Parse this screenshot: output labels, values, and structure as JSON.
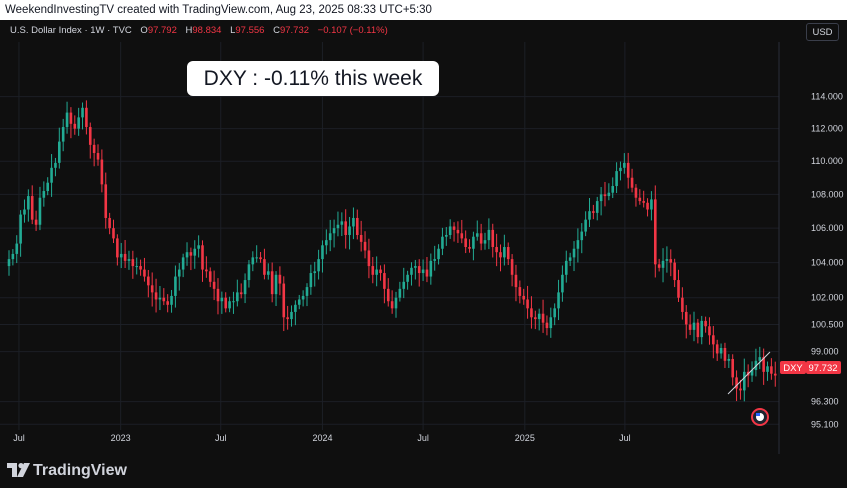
{
  "header": {
    "attribution": "WeekendInvestingTV created with TradingView.com, Aug 23, 2025 08:33 UTC+5:30"
  },
  "legend": {
    "symbol": "U.S. Dollar Index · 1W · TVC",
    "open_label": "O",
    "open": "97.792",
    "high_label": "H",
    "high": "98.834",
    "low_label": "L",
    "low": "97.556",
    "close_label": "C",
    "close": "97.732",
    "change": "−0.107 (−0.11%)"
  },
  "currency_button": "USD",
  "callout": "DXY : -0.11% this week",
  "price_tag": {
    "ticker": "DXY",
    "value": "97.732"
  },
  "footer": {
    "brand": "TradingView"
  },
  "colors": {
    "up": "#22ab94",
    "down": "#f23645",
    "background": "#0f0f0f"
  },
  "chart_data": {
    "type": "candlestick",
    "title": "",
    "y_scale": "log",
    "ylim": [
      94.8,
      117.5
    ],
    "y_ticks": [
      "114.000",
      "112.000",
      "110.000",
      "108.000",
      "106.000",
      "104.000",
      "102.000",
      "100.500",
      "99.000",
      "96.300",
      "95.100"
    ],
    "x_ticks": [
      "Jul",
      "2023",
      "Jul",
      "2024",
      "Jul",
      "2025",
      "Jul"
    ],
    "x_start": "2022-06-13",
    "weekly_closes": [
      104.2,
      104.5,
      105.1,
      106.8,
      107.1,
      107.9,
      106.5,
      106.2,
      107.8,
      108.2,
      108.7,
      109.6,
      109.9,
      111.2,
      112.1,
      113.0,
      112.3,
      112.0,
      112.7,
      113.3,
      112.1,
      111.0,
      110.5,
      110.1,
      108.6,
      106.6,
      106.0,
      105.4,
      104.3,
      104.5,
      104.1,
      104.2,
      103.8,
      103.8,
      103.6,
      103.2,
      102.7,
      102.3,
      101.9,
      102.0,
      101.8,
      101.6,
      102.1,
      103.2,
      103.6,
      104.3,
      104.6,
      104.4,
      104.8,
      105.0,
      103.6,
      103.5,
      102.9,
      102.5,
      101.8,
      102.0,
      101.4,
      101.8,
      101.8,
      102.3,
      102.2,
      103.0,
      103.9,
      104.3,
      104.3,
      104.2,
      103.3,
      103.5,
      102.2,
      103.3,
      102.8,
      100.9,
      100.8,
      101.2,
      101.6,
      101.9,
      102.1,
      102.6,
      103.4,
      103.5,
      104.2,
      105.0,
      105.3,
      105.7,
      106.0,
      106.2,
      106.4,
      105.6,
      106.1,
      106.6,
      105.6,
      105.2,
      104.7,
      103.8,
      103.3,
      103.6,
      103.4,
      102.5,
      101.8,
      101.4,
      102.0,
      102.5,
      102.9,
      103.3,
      103.7,
      103.8,
      103.4,
      103.6,
      103.2,
      104.1,
      104.2,
      104.8,
      105.5,
      105.6,
      106.1,
      105.9,
      105.7,
      105.4,
      104.9,
      104.8,
      105.5,
      105.7,
      105.1,
      105.3,
      105.9,
      104.9,
      104.6,
      104.3,
      104.9,
      104.2,
      103.3,
      102.6,
      102.1,
      101.9,
      101.4,
      100.9,
      100.8,
      101.1,
      100.6,
      100.3,
      100.9,
      101.4,
      102.3,
      103.3,
      104.1,
      104.3,
      104.8,
      105.3,
      105.8,
      106.5,
      107.0,
      106.9,
      107.6,
      108.0,
      107.9,
      108.1,
      108.5,
      109.4,
      109.6,
      109.9,
      109.0,
      108.4,
      107.8,
      107.6,
      107.5,
      107.1,
      107.7,
      103.9,
      103.7,
      104.1,
      104.2,
      104.0,
      103.0,
      102.0,
      101.2,
      100.5,
      100.2,
      100.6,
      99.8,
      100.7,
      100.4,
      99.9,
      99.4,
      98.9,
      99.2,
      98.5,
      98.6,
      97.6,
      97.0,
      96.9,
      97.9,
      97.7,
      98.0,
      98.5,
      98.7,
      97.9,
      98.2,
      97.8,
      97.7
    ]
  }
}
